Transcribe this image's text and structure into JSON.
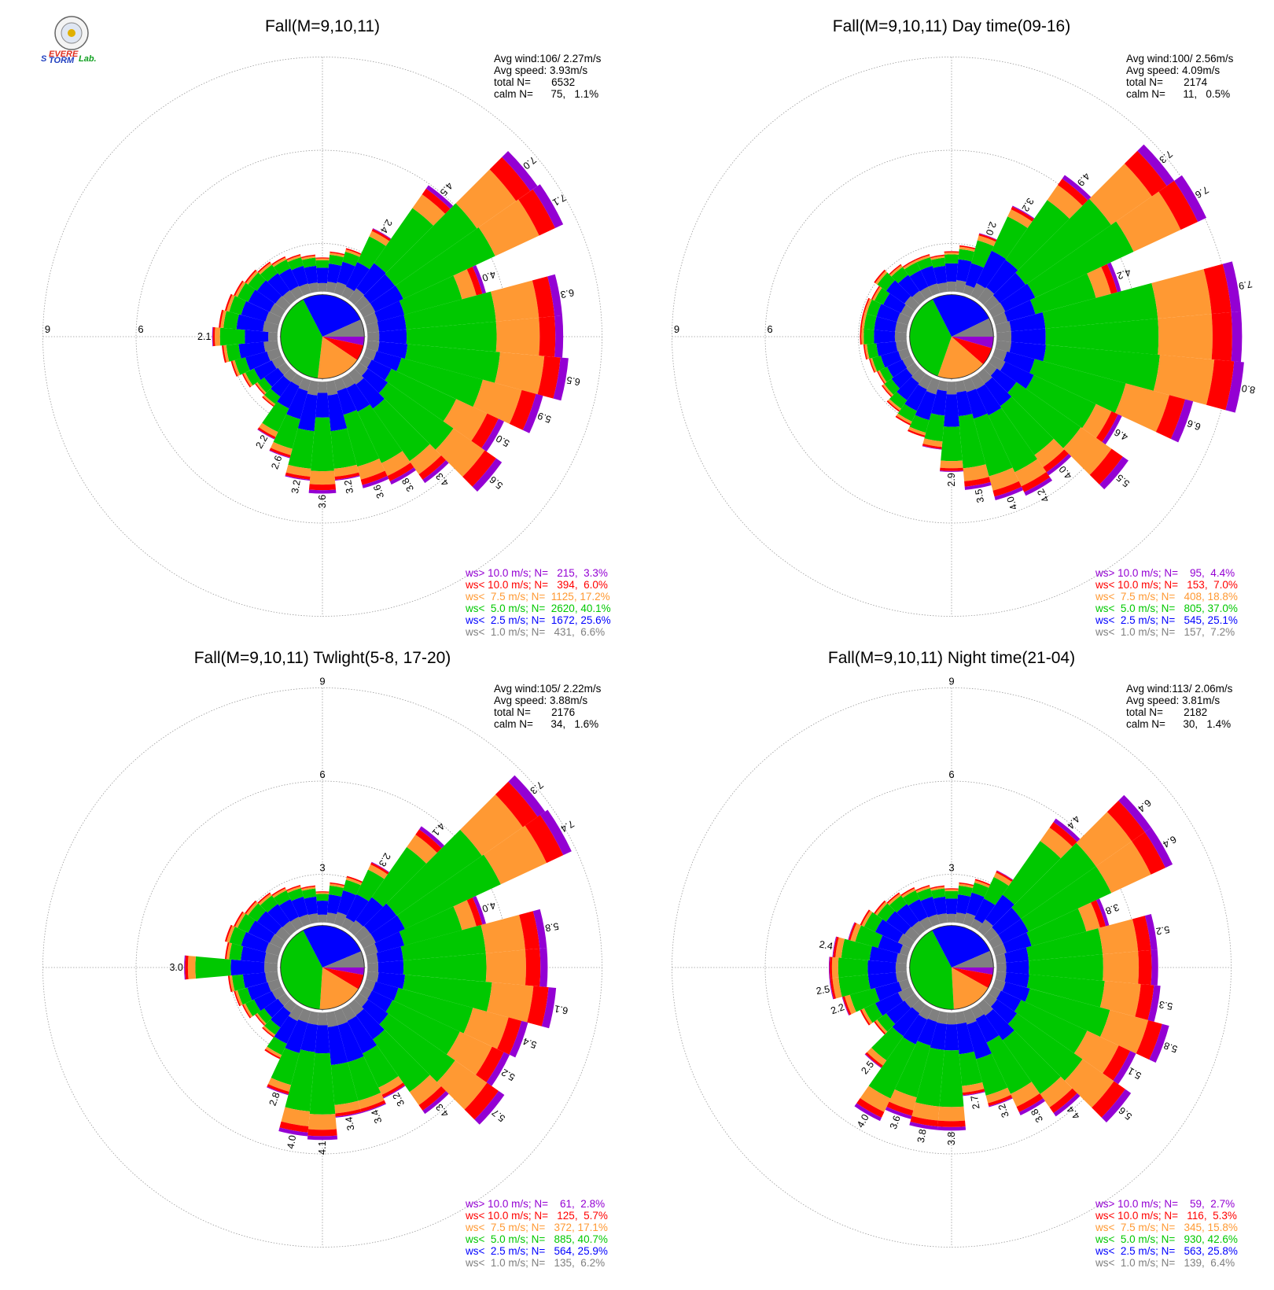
{
  "colors": {
    "ws_gt_10": "#9400d3",
    "ws_lt_10": "#ff0000",
    "ws_lt_7_5": "#ff9933",
    "ws_lt_5": "#00c800",
    "ws_lt_2_5": "#0000ff",
    "ws_lt_1": "#808080"
  },
  "logo": {
    "icon": "lab-seal-icon",
    "text_a": "S",
    "text_b": "EVERE",
    "text_c": "TORM",
    "text_d": "Lab."
  },
  "ring_labels": [
    "3",
    "6",
    "9"
  ],
  "chart_data": [
    {
      "type": "polar-bar",
      "title": "Fall(M=9,10,11)",
      "info": {
        "avg_wind": "Avg wind:106/ 2.27m/s",
        "avg_speed": "Avg speed: 3.93m/s",
        "total": "total N=       6532",
        "calm": "calm N=      75,   1.1%"
      },
      "ring_label_dir": "west",
      "rlim": [
        0,
        9
      ],
      "directions_deg": [
        0,
        10,
        20,
        30,
        40,
        50,
        60,
        70,
        80,
        90,
        100,
        110,
        120,
        130,
        140,
        150,
        160,
        170,
        180,
        190,
        200,
        210,
        220,
        230,
        240,
        250,
        260,
        270,
        280,
        290,
        300,
        310,
        320,
        330,
        340,
        350
      ],
      "totals": [
        1.1,
        1.3,
        1.5,
        2.4,
        4.5,
        7.0,
        7.1,
        4.0,
        6.3,
        6.3,
        6.5,
        5.9,
        5.0,
        5.6,
        4.3,
        3.8,
        3.6,
        3.2,
        3.6,
        3.2,
        2.6,
        2.2,
        1.3,
        1.2,
        1.4,
        1.6,
        1.8,
        2.1,
        1.9,
        1.8,
        1.7,
        1.6,
        1.5,
        1.4,
        1.3,
        1.2
      ],
      "labels": [
        "",
        "",
        "",
        "2.4",
        "4.5",
        "7.0",
        "7.1",
        "4.0",
        "6.3",
        "",
        "6.5",
        "5.9",
        "5.0",
        "5.6",
        "4.3",
        "3.8",
        "3.6",
        "3.2",
        "3.6",
        "3.2",
        "2.6",
        "2.2",
        "",
        "",
        "",
        "",
        "",
        "2.1",
        "",
        "",
        "",
        "",
        "",
        "",
        "",
        ""
      ],
      "legend": [
        {
          "label": "ws> 10.0 m/s; N=   215,  3.3%",
          "color": "#9400d3"
        },
        {
          "label": "ws< 10.0 m/s; N=   394,  6.0%",
          "color": "#ff0000"
        },
        {
          "label": "ws<  7.5 m/s; N=  1125, 17.2%",
          "color": "#ff9933"
        },
        {
          "label": "ws<  5.0 m/s; N=  2620, 40.1%",
          "color": "#00c800"
        },
        {
          "label": "ws<  2.5 m/s; N=  1672, 25.6%",
          "color": "#0000ff"
        },
        {
          "label": "ws<  1.0 m/s; N=   431,  6.6%",
          "color": "#808080"
        }
      ],
      "pie": [
        3.3,
        6.0,
        17.2,
        40.1,
        25.6,
        6.6
      ]
    },
    {
      "type": "polar-bar",
      "title": "Fall(M=9,10,11) Day time(09-16)",
      "info": {
        "avg_wind": "Avg wind:100/ 2.56m/s",
        "avg_speed": "Avg speed: 4.09m/s",
        "total": "total N=       2174",
        "calm": "calm N=      11,   0.5%"
      },
      "ring_label_dir": "west",
      "rlim": [
        0,
        9
      ],
      "directions_deg": [
        0,
        10,
        20,
        30,
        40,
        50,
        60,
        70,
        80,
        90,
        100,
        110,
        120,
        130,
        140,
        150,
        160,
        170,
        180,
        190,
        200,
        210,
        220,
        230,
        240,
        250,
        260,
        270,
        280,
        290,
        300,
        310,
        320,
        330,
        340,
        350
      ],
      "totals": [
        1.3,
        1.5,
        2.0,
        3.2,
        4.9,
        7.3,
        7.6,
        4.2,
        7.9,
        7.9,
        8.0,
        6.6,
        4.6,
        5.5,
        4.0,
        4.2,
        4.0,
        3.5,
        2.9,
        2.2,
        1.9,
        1.7,
        1.5,
        1.3,
        1.2,
        1.3,
        1.4,
        1.5,
        1.5,
        1.5,
        1.4,
        1.6,
        1.4,
        1.3,
        1.3,
        1.2
      ],
      "labels": [
        "",
        "",
        "2.0",
        "3.2",
        "4.9",
        "7.3",
        "7.6",
        "4.2",
        "7.9",
        "",
        "8.0",
        "6.6",
        "4.6",
        "5.5",
        "4.0",
        "4.2",
        "4.0",
        "3.5",
        "2.9",
        "",
        "",
        "",
        "",
        "",
        "",
        "",
        "",
        "",
        "",
        "",
        "",
        "",
        "",
        "",
        "",
        ""
      ],
      "legend": [
        {
          "label": "ws> 10.0 m/s; N=    95,  4.4%",
          "color": "#9400d3"
        },
        {
          "label": "ws< 10.0 m/s; N=   153,  7.0%",
          "color": "#ff0000"
        },
        {
          "label": "ws<  7.5 m/s; N=   408, 18.8%",
          "color": "#ff9933"
        },
        {
          "label": "ws<  5.0 m/s; N=   805, 37.0%",
          "color": "#00c800"
        },
        {
          "label": "ws<  2.5 m/s; N=   545, 25.1%",
          "color": "#0000ff"
        },
        {
          "label": "ws<  1.0 m/s; N=   157,  7.2%",
          "color": "#808080"
        }
      ],
      "pie": [
        4.4,
        7.0,
        18.8,
        37.0,
        25.1,
        7.2
      ]
    },
    {
      "type": "polar-bar",
      "title": "Fall(M=9,10,11) Twlight(5-8, 17-20)",
      "info": {
        "avg_wind": "Avg wind:105/ 2.22m/s",
        "avg_speed": "Avg speed: 3.88m/s",
        "total": "total N=       2176",
        "calm": "calm N=      34,   1.6%"
      },
      "ring_label_dir": "north",
      "rlim": [
        0,
        9
      ],
      "directions_deg": [
        0,
        10,
        20,
        30,
        40,
        50,
        60,
        70,
        80,
        90,
        100,
        110,
        120,
        130,
        140,
        150,
        160,
        170,
        180,
        190,
        200,
        210,
        220,
        230,
        240,
        250,
        260,
        270,
        280,
        290,
        300,
        310,
        320,
        330,
        340,
        350
      ],
      "totals": [
        1.0,
        1.3,
        1.6,
        2.3,
        4.1,
        7.3,
        7.4,
        4.0,
        5.8,
        5.8,
        6.1,
        5.4,
        5.2,
        5.7,
        4.3,
        3.2,
        3.4,
        3.4,
        4.1,
        4.0,
        2.8,
        1.8,
        1.3,
        1.2,
        1.4,
        1.5,
        1.6,
        3.0,
        1.7,
        1.8,
        1.7,
        1.6,
        1.5,
        1.4,
        1.3,
        1.2
      ],
      "labels": [
        "",
        "",
        "",
        "2.3",
        "4.1",
        "7.3",
        "7.4",
        "4.0",
        "5.8",
        "",
        "6.1",
        "5.4",
        "5.2",
        "5.7",
        "4.3",
        "3.2",
        "3.4",
        "3.4",
        "4.1",
        "4.0",
        "2.8",
        "",
        "",
        "",
        "",
        "",
        "",
        "3.0",
        "",
        "",
        "",
        "",
        "",
        "",
        "",
        ""
      ],
      "legend": [
        {
          "label": "ws> 10.0 m/s; N=    61,  2.8%",
          "color": "#9400d3"
        },
        {
          "label": "ws< 10.0 m/s; N=   125,  5.7%",
          "color": "#ff0000"
        },
        {
          "label": "ws<  7.5 m/s; N=   372, 17.1%",
          "color": "#ff9933"
        },
        {
          "label": "ws<  5.0 m/s; N=   885, 40.7%",
          "color": "#00c800"
        },
        {
          "label": "ws<  2.5 m/s; N=   564, 25.9%",
          "color": "#0000ff"
        },
        {
          "label": "ws<  1.0 m/s; N=   135,  6.2%",
          "color": "#808080"
        }
      ],
      "pie": [
        2.8,
        5.7,
        17.1,
        40.7,
        25.9,
        6.2
      ]
    },
    {
      "type": "polar-bar",
      "title": "Fall(M=9,10,11) Night time(21-04)",
      "info": {
        "avg_wind": "Avg wind:113/ 2.06m/s",
        "avg_speed": "Avg speed: 3.81m/s",
        "total": "total N=       2182",
        "calm": "calm N=      30,   1.4%"
      },
      "ring_label_dir": "north",
      "rlim": [
        0,
        9
      ],
      "directions_deg": [
        0,
        10,
        20,
        30,
        40,
        50,
        60,
        70,
        80,
        90,
        100,
        110,
        120,
        130,
        140,
        150,
        160,
        170,
        180,
        190,
        200,
        210,
        220,
        230,
        240,
        250,
        260,
        270,
        280,
        290,
        300,
        310,
        320,
        330,
        340,
        350
      ],
      "totals": [
        1.1,
        1.3,
        1.5,
        2.0,
        4.4,
        6.4,
        6.4,
        3.8,
        5.2,
        5.2,
        5.3,
        5.8,
        5.1,
        5.6,
        4.4,
        3.8,
        3.2,
        2.7,
        3.8,
        3.8,
        3.6,
        4.0,
        2.5,
        1.6,
        1.8,
        2.2,
        2.5,
        2.5,
        2.4,
        2.0,
        1.8,
        1.6,
        1.5,
        1.4,
        1.3,
        1.2
      ],
      "labels": [
        "",
        "",
        "",
        "",
        "4.4",
        "6.4",
        "6.4",
        "3.8",
        "5.2",
        "",
        "5.3",
        "5.8",
        "5.1",
        "5.6",
        "4.4",
        "3.8",
        "3.2",
        "2.7",
        "3.8",
        "3.8",
        "3.6",
        "4.0",
        "2.5",
        "",
        "",
        "2.2",
        "2.5",
        "",
        "2.4",
        "",
        "",
        "",
        "",
        "",
        "",
        ""
      ],
      "legend": [
        {
          "label": "ws> 10.0 m/s; N=    59,  2.7%",
          "color": "#9400d3"
        },
        {
          "label": "ws< 10.0 m/s; N=   116,  5.3%",
          "color": "#ff0000"
        },
        {
          "label": "ws<  7.5 m/s; N=   345, 15.8%",
          "color": "#ff9933"
        },
        {
          "label": "ws<  5.0 m/s; N=   930, 42.6%",
          "color": "#00c800"
        },
        {
          "label": "ws<  2.5 m/s; N=   563, 25.8%",
          "color": "#0000ff"
        },
        {
          "label": "ws<  1.0 m/s; N=   139,  6.4%",
          "color": "#808080"
        }
      ],
      "pie": [
        2.7,
        5.3,
        15.8,
        42.6,
        25.8,
        6.4
      ]
    }
  ]
}
